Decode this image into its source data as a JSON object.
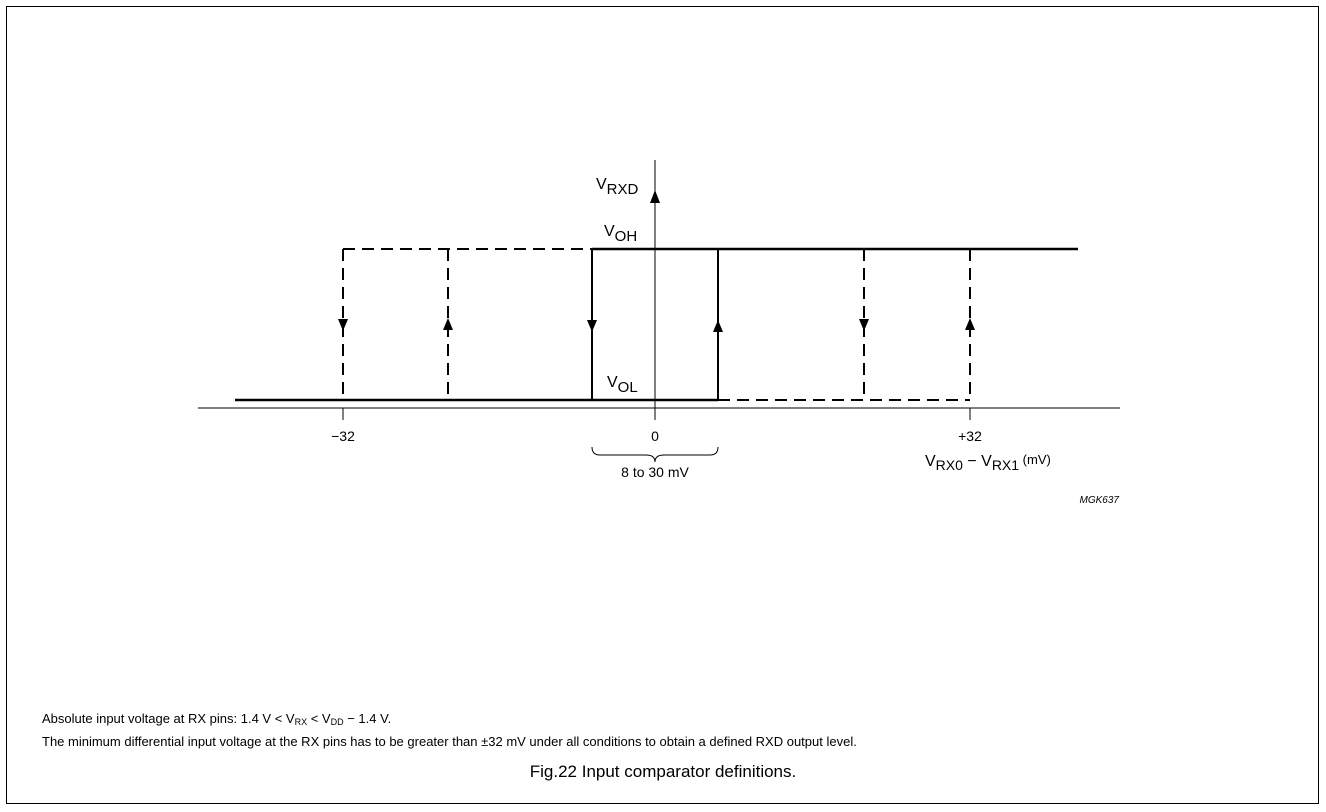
{
  "diagram": {
    "y_axis_label": {
      "main": "V",
      "sub": "RXD"
    },
    "level_high": {
      "main": "V",
      "sub": "OH"
    },
    "level_low": {
      "main": "V",
      "sub": "OL"
    },
    "ticks": [
      "−32",
      "0",
      "+32"
    ],
    "x_axis_label": {
      "a_main": "V",
      "a_sub": "RX0",
      "minus": " − ",
      "b_main": "V",
      "b_sub": "RX1",
      "unit": " (mV)"
    },
    "hysteresis_label": "8 to 30 mV",
    "figure_code": "MGK637"
  },
  "notes": {
    "line1": {
      "pre": "Absolute input voltage at RX pins: 1.4 V < V",
      "sub1": "RX",
      "mid": " < V",
      "sub2": "DD",
      "post": " − 1.4 V."
    },
    "line2": "The minimum differential input voltage at the RX pins has to be greater than ±32 mV under all conditions to obtain a defined RXD output level."
  },
  "caption": "Fig.22  Input comparator definitions."
}
